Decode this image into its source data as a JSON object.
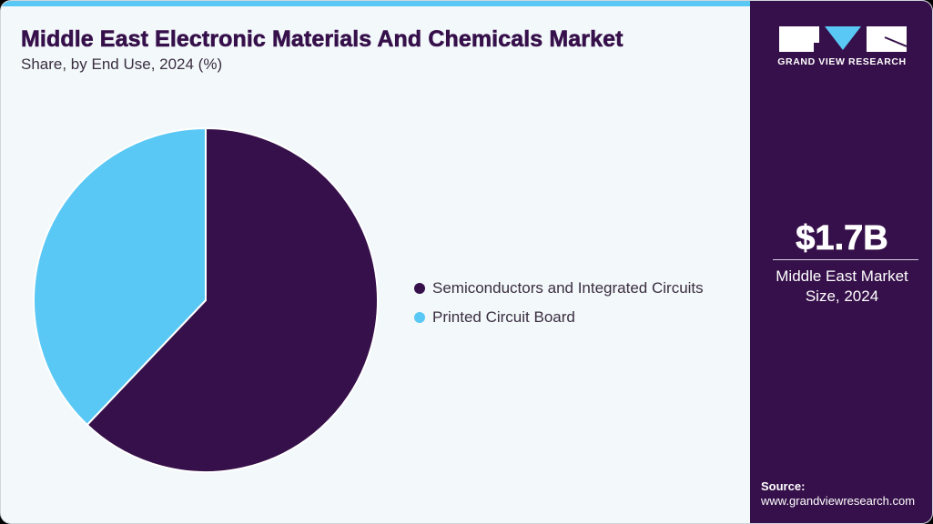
{
  "header": {
    "title": "Middle East Electronic Materials And Chemicals Market",
    "subtitle": "Share, by End Use, 2024 (%)"
  },
  "colors": {
    "primary": "#36104a",
    "accent": "#5ac8f5",
    "background": "#f3f8fb"
  },
  "legend": [
    {
      "label": "Semiconductors and Integrated Circuits",
      "color": "#36104a"
    },
    {
      "label": "Printed Circuit Board",
      "color": "#5ac8f5"
    }
  ],
  "sidebar": {
    "brand": "GRAND VIEW RESEARCH",
    "market_value": "$1.7B",
    "market_label_line1": "Middle East Market",
    "market_label_line2": "Size, 2024",
    "source_heading": "Source:",
    "source_url": "www.grandviewresearch.com"
  },
  "chart_data": {
    "type": "pie",
    "title": "Middle East Electronic Materials And Chemicals Market",
    "subtitle": "Share, by End Use, 2024 (%)",
    "categories": [
      "Semiconductors and Integrated Circuits",
      "Printed Circuit Board"
    ],
    "values": [
      62.1,
      37.9
    ],
    "colors": [
      "#36104a",
      "#5ac8f5"
    ],
    "start_angle_deg": 0,
    "direction": "clockwise",
    "legend_position": "right"
  }
}
